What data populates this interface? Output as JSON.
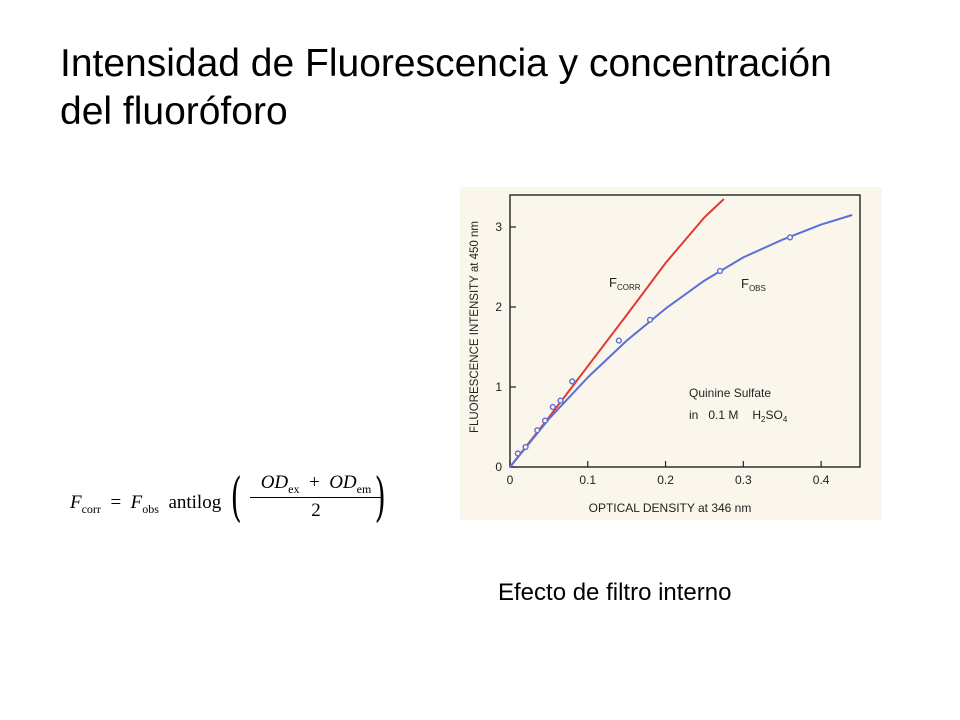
{
  "slide": {
    "title_line1": "Intensidad de Fluorescencia y concentración",
    "title_line2": "del fluoróforo",
    "caption": "Efecto de filtro interno"
  },
  "formula": {
    "lhs": "F",
    "lhs_sub": "corr",
    "equals": "=",
    "rhs": "F",
    "rhs_sub": "obs",
    "func": "antilog",
    "num_a": "OD",
    "num_a_sub": "ex",
    "plus": "+",
    "num_b": "OD",
    "num_b_sub": "em",
    "den": "2"
  },
  "chart_data": {
    "type": "line",
    "xlabel": "OPTICAL DENSITY at 346 nm",
    "ylabel": "FLUORESCENCE INTENSITY at 450 nm",
    "xlim": [
      0,
      0.45
    ],
    "ylim": [
      0,
      3.4
    ],
    "x_ticks": [
      0,
      0.1,
      0.2,
      0.3,
      0.4
    ],
    "x_tick_labels": [
      "0",
      "0.1",
      "0.2",
      "0.3",
      "0.4"
    ],
    "y_ticks": [
      0,
      1,
      2,
      3
    ],
    "y_tick_labels": [
      "0",
      "1",
      "2",
      "3"
    ],
    "background": "#fbf6ec",
    "series": [
      {
        "name": "F",
        "name_sub": "CORR",
        "color": "#e03a35",
        "x": [
          0,
          0.05,
          0.1,
          0.15,
          0.2,
          0.25,
          0.275
        ],
        "y": [
          0,
          0.62,
          1.26,
          1.9,
          2.55,
          3.12,
          3.35
        ]
      },
      {
        "name": "F",
        "name_sub": "OBS",
        "color": "#5c6fd6",
        "x": [
          0,
          0.05,
          0.1,
          0.15,
          0.2,
          0.25,
          0.3,
          0.35,
          0.4,
          0.44
        ],
        "y": [
          0,
          0.6,
          1.12,
          1.58,
          1.98,
          2.33,
          2.62,
          2.84,
          3.03,
          3.15
        ]
      },
      {
        "name": "points",
        "type": "scatter",
        "color": "#5c6fd6",
        "x": [
          0.01,
          0.02,
          0.035,
          0.045,
          0.055,
          0.065,
          0.08,
          0.14,
          0.18,
          0.27,
          0.36
        ],
        "y": [
          0.17,
          0.25,
          0.46,
          0.58,
          0.75,
          0.83,
          1.07,
          1.58,
          1.84,
          2.45,
          2.87
        ]
      }
    ],
    "annotation_line1": "Quinine Sulfate",
    "annotation_in": "in",
    "annotation_conc": "0.1 M",
    "annotation_acid_a": "H",
    "annotation_acid_a_sub": "2",
    "annotation_acid_b": "SO",
    "annotation_acid_b_sub": "4"
  }
}
